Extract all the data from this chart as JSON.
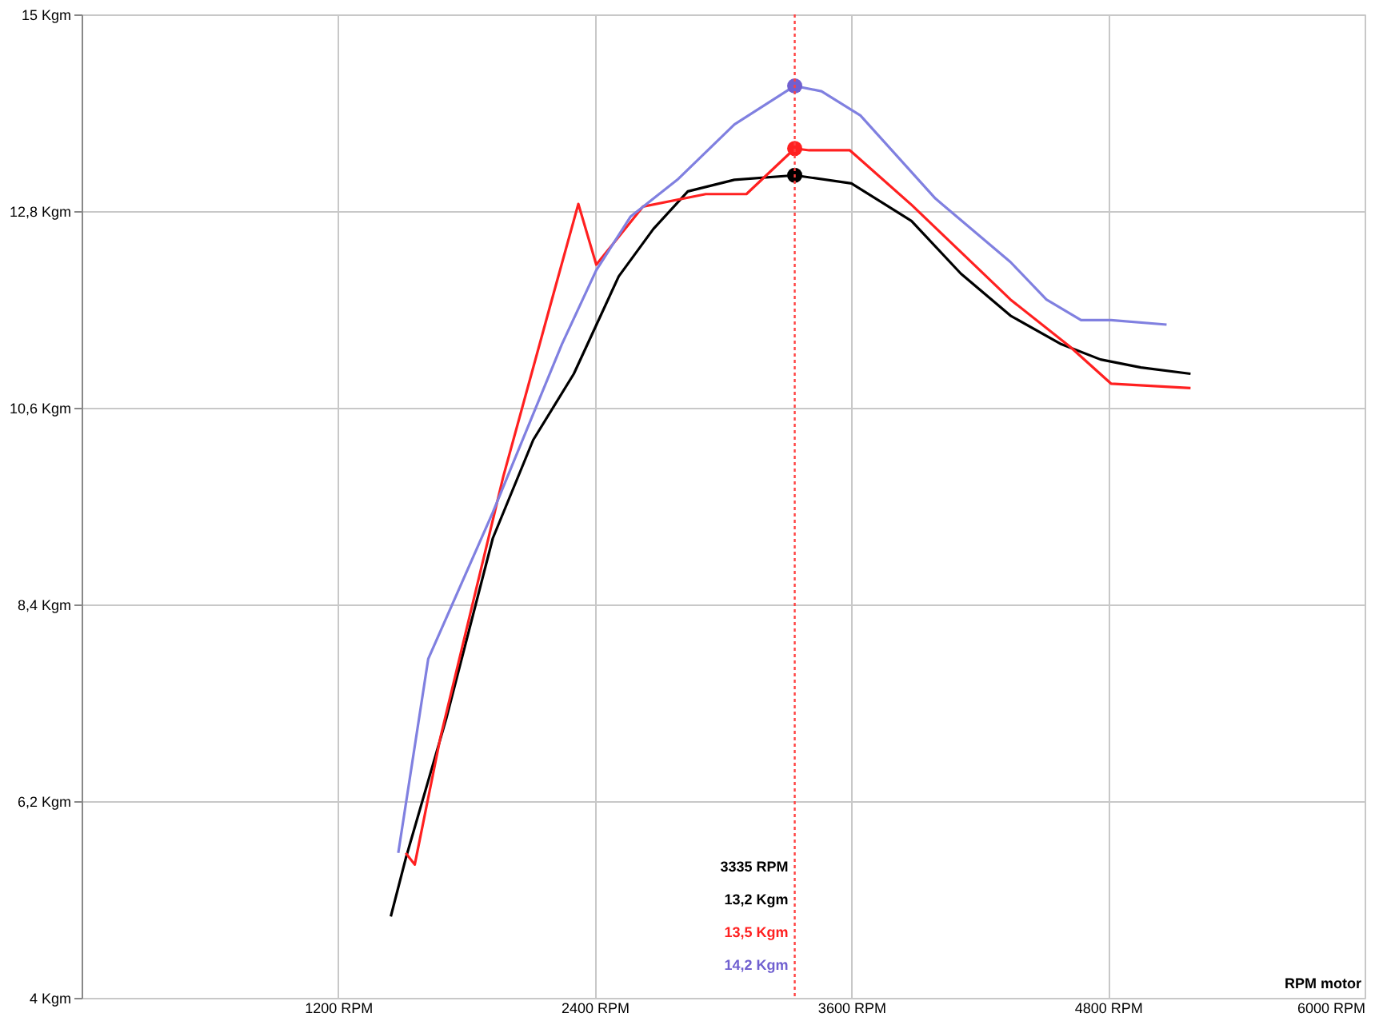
{
  "chart_data": {
    "type": "line",
    "xlabel": "RPM motor",
    "xlim": [
      0,
      6000
    ],
    "xticks": [
      {
        "value": 1200,
        "label": "1200 RPM"
      },
      {
        "value": 2400,
        "label": "2400 RPM"
      },
      {
        "value": 3600,
        "label": "3600 RPM"
      },
      {
        "value": 4800,
        "label": "4800 RPM"
      },
      {
        "value": 6000,
        "label": "6000 RPM"
      }
    ],
    "ylim": [
      4,
      15
    ],
    "yticks": [
      {
        "value": 4,
        "label": "4 Kgm"
      },
      {
        "value": 6.2,
        "label": "6,2 Kgm"
      },
      {
        "value": 8.4,
        "label": "8,4 Kgm"
      },
      {
        "value": 10.6,
        "label": "10,6 Kgm"
      },
      {
        "value": 12.8,
        "label": "12,8 Kgm"
      },
      {
        "value": 15,
        "label": "15 Kgm"
      }
    ],
    "grid": true,
    "line_style": "solid",
    "series": [
      {
        "color": "#000000",
        "x": [
          1446,
          1516,
          1705,
          1923,
          2112,
          2302,
          2512,
          2674,
          2835,
          3053,
          3335,
          3600,
          3881,
          4112,
          4344,
          4582,
          4765,
          4954,
          5186
        ],
        "values": [
          4.91,
          5.56,
          7.12,
          9.14,
          10.24,
          10.98,
          12.07,
          12.6,
          13.02,
          13.15,
          13.2,
          13.11,
          12.69,
          12.1,
          11.63,
          11.31,
          11.14,
          11.05,
          10.98
        ]
      },
      {
        "color": "#ff2020",
        "x": [
          1516,
          1558,
          1677,
          1972,
          2189,
          2323,
          2407,
          2625,
          2919,
          3109,
          3335,
          3403,
          3593,
          3881,
          4344,
          4624,
          4814,
          5186
        ],
        "values": [
          5.62,
          5.49,
          6.9,
          9.83,
          11.72,
          12.88,
          12.2,
          12.85,
          12.99,
          12.99,
          13.5,
          13.48,
          13.48,
          12.87,
          11.81,
          11.28,
          10.87,
          10.82
        ]
      },
      {
        "color": "#8080e0",
        "x": [
          1481,
          1621,
          1923,
          2246,
          2407,
          2568,
          2786,
          3053,
          3335,
          3460,
          3642,
          3993,
          4344,
          4512,
          4674,
          4814,
          5074
        ],
        "values": [
          5.62,
          7.79,
          9.43,
          11.31,
          12.14,
          12.74,
          13.15,
          13.77,
          14.2,
          14.14,
          13.87,
          12.94,
          12.23,
          11.81,
          11.58,
          11.58,
          11.53
        ]
      },
      {
        "type": "scatter",
        "marker": "circle",
        "x": [
          3335,
          3335,
          3335
        ],
        "values": [
          13.2,
          13.5,
          14.2
        ],
        "colors": [
          "#000000",
          "#ff2020",
          "#7060d0"
        ]
      }
    ],
    "ref_lines": [
      {
        "axis": "x",
        "value": 3335,
        "color": "#ff4040",
        "line_style": "dotted"
      }
    ],
    "annotations": [
      "3335 RPM",
      "13,2 Kgm",
      "13,5 Kgm",
      "14,2 Kgm"
    ]
  }
}
